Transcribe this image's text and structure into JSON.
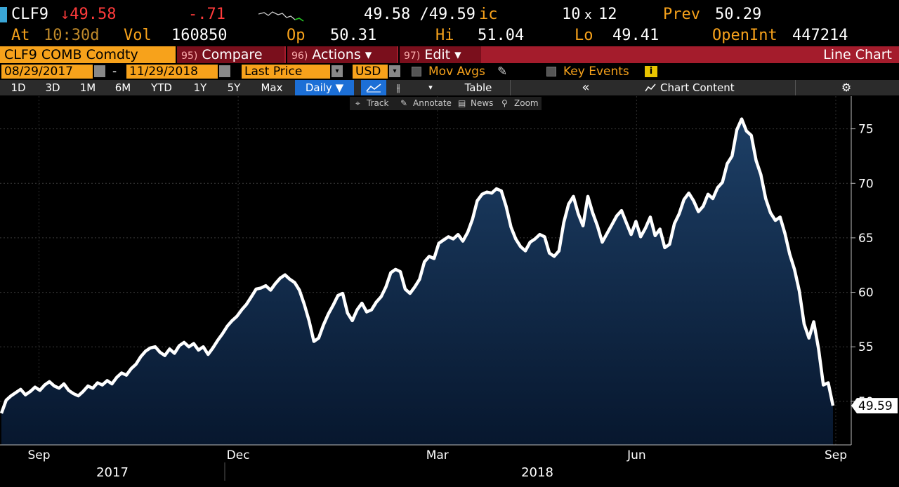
{
  "header": {
    "ticker": "CLF9",
    "last": "↓49.58",
    "change": "-.71",
    "bid_ask": "49.58 /49.59",
    "bid_ask_suffix": "ic",
    "size_bid": "10",
    "size_x": "x",
    "size_ask": "12",
    "prev_label": "Prev",
    "prev_value": "50.29",
    "at_label": "At",
    "time": "10:30d",
    "vol_label": "Vol",
    "vol_value": "160850",
    "op_label": "Op",
    "op_value": "50.31",
    "hi_label": "Hi",
    "hi_value": "51.04",
    "lo_label": "Lo",
    "lo_value": "49.41",
    "oi_label": "OpenInt",
    "oi_value": "447214"
  },
  "function_bar": {
    "security": "CLF9 COMB Comdty",
    "compare_num": "95)",
    "compare": "Compare",
    "actions_num": "96)",
    "actions": "Actions ▾",
    "edit_num": "97)",
    "edit": "Edit ▾",
    "title": "Line Chart"
  },
  "range_bar": {
    "start_date": "08/29/2017",
    "dash": "-",
    "end_date": "11/29/2018",
    "field": "Last Price",
    "currency": "USD",
    "mov_avgs": "Mov Avgs",
    "key_events": "Key Events"
  },
  "period_tabs": [
    "1D",
    "3D",
    "1M",
    "6M",
    "YTD",
    "1Y",
    "5Y",
    "Max"
  ],
  "toolbar": {
    "frequency": "Daily ▼",
    "table": "Table",
    "collapse": "«",
    "chart_content": "Chart Content",
    "settings_icon": "gear-icon",
    "track": "Track",
    "annotate": "Annotate",
    "news": "News",
    "zoom": "Zoom"
  },
  "colors": {
    "accent_orange": "#f7a21b",
    "function_red": "#a41c2c",
    "line": "#ffffff",
    "area_top": "#1d3f66",
    "area_bottom": "#07172e",
    "active_tab": "#1c6fd6"
  },
  "chart_data": {
    "type": "area",
    "ylim": [
      46,
      78
    ],
    "y_ticks": [
      50,
      55,
      60,
      65,
      70,
      75
    ],
    "x_ticks": [
      "Sep",
      "Dec",
      "Mar",
      "Jun",
      "Sep"
    ],
    "years": [
      "2017",
      "2018"
    ],
    "last_value_label": "49.59",
    "series": [
      {
        "values": [
          48.9,
          50.1,
          50.5,
          50.8,
          51.1,
          50.6,
          50.9,
          51.3,
          51.0,
          51.5,
          51.8,
          51.4,
          51.2,
          51.6,
          51.0,
          50.7,
          50.5,
          50.9,
          51.4,
          51.2,
          51.7,
          51.5,
          51.9,
          51.6,
          52.2,
          52.6,
          52.4,
          53.0,
          53.4,
          54.1,
          54.6,
          54.9,
          55.0,
          54.5,
          54.2,
          54.8,
          54.4,
          55.1,
          55.4,
          55.0,
          55.3,
          54.7,
          55.0,
          54.3,
          54.9,
          55.6,
          56.2,
          56.9,
          57.4,
          57.8,
          58.4,
          58.9,
          59.6,
          60.3,
          60.4,
          60.6,
          60.2,
          60.8,
          61.3,
          61.6,
          61.2,
          60.9,
          60.2,
          58.9,
          57.4,
          55.5,
          55.8,
          57.0,
          58.0,
          58.8,
          59.7,
          59.9,
          58.1,
          57.4,
          58.4,
          59.0,
          58.2,
          58.4,
          59.1,
          59.6,
          60.5,
          61.8,
          62.1,
          61.9,
          60.3,
          59.9,
          60.5,
          61.2,
          62.8,
          63.3,
          63.1,
          64.5,
          64.8,
          65.1,
          64.9,
          65.3,
          64.7,
          65.5,
          66.7,
          68.4,
          69.0,
          69.2,
          69.1,
          69.5,
          69.3,
          67.9,
          66.0,
          64.9,
          64.2,
          63.8,
          64.6,
          64.9,
          65.3,
          65.1,
          63.6,
          63.3,
          63.8,
          66.4,
          68.1,
          68.8,
          67.2,
          66.1,
          68.8,
          67.3,
          66.1,
          64.6,
          65.4,
          66.2,
          67.0,
          67.5,
          66.4,
          65.3,
          66.5,
          65.1,
          65.9,
          66.9,
          65.2,
          65.8,
          64.1,
          64.4,
          66.3,
          67.2,
          68.5,
          69.1,
          68.4,
          67.4,
          67.9,
          69.0,
          68.6,
          69.6,
          70.1,
          71.8,
          72.5,
          74.9,
          75.9,
          74.8,
          74.4,
          72.1,
          70.8,
          68.6,
          67.3,
          66.6,
          66.9,
          65.4,
          63.5,
          62.1,
          60.1,
          57.1,
          55.8,
          57.3,
          54.8,
          51.5,
          51.7,
          49.6
        ]
      }
    ]
  }
}
